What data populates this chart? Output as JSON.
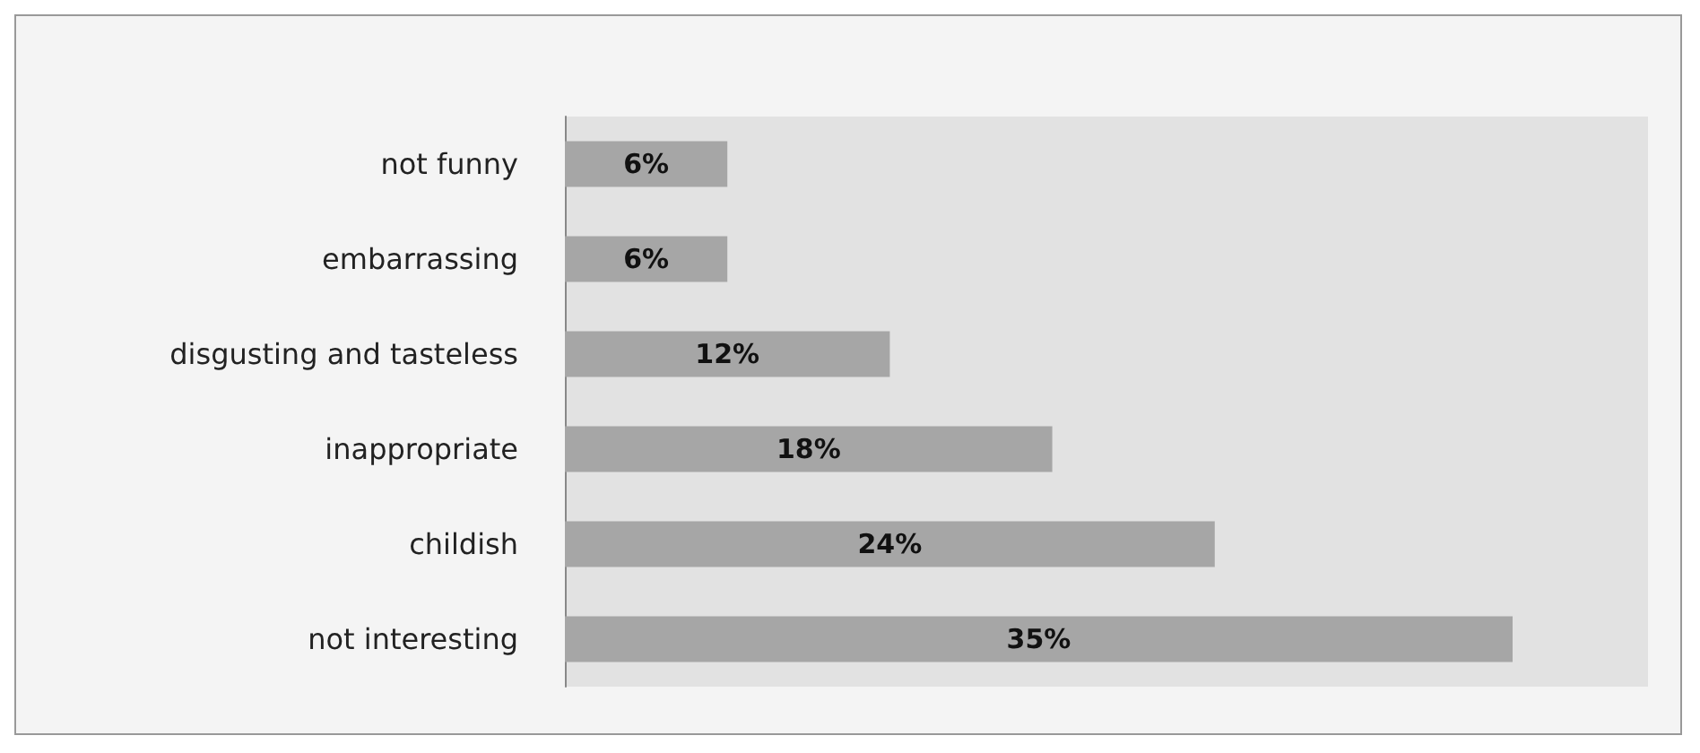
{
  "chart_data": {
    "type": "bar",
    "orientation": "horizontal",
    "categories": [
      "not funny",
      "embarrassing",
      "disgusting and tasteless",
      "inappropriate",
      "childish",
      "not interesting"
    ],
    "values": [
      6,
      6,
      12,
      18,
      24,
      35
    ],
    "value_labels": [
      "6%",
      "6%",
      "12%",
      "18%",
      "24%",
      "35%"
    ],
    "color": "#a6a6a6",
    "grid": false
  }
}
